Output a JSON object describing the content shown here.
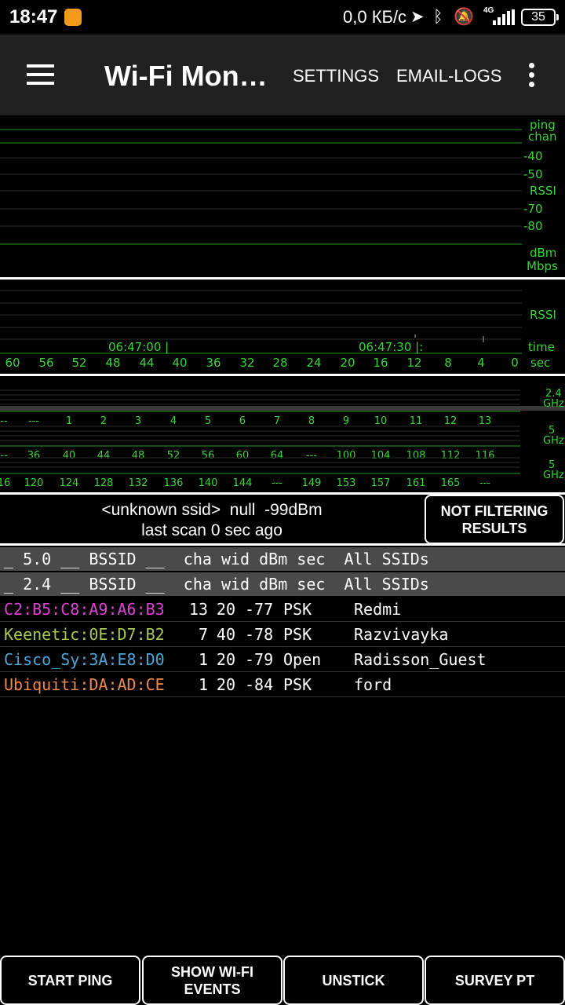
{
  "status_bar": {
    "time": "18:47",
    "network_speed": "0,0 КБ/с",
    "network_type": "4G",
    "battery": "35",
    "icons": [
      "location-arrow-icon",
      "bluetooth-icon",
      "bell-off-icon",
      "signal-icon"
    ]
  },
  "app_bar": {
    "title": "Wi-Fi Monit…",
    "settings": "SETTINGS",
    "email_logs": "EMAIL-LOGS"
  },
  "graph1": {
    "labels": [
      "ping",
      "chan",
      "-40",
      "-50",
      "RSSI",
      "-70",
      "-80",
      "dBm",
      "Mbps"
    ]
  },
  "graph2": {
    "rssi_label": "RSSI",
    "time_label": "time",
    "sec_label": "sec",
    "timestamps": [
      "06:47:00 |",
      "06:47:30 |:"
    ],
    "ticks": [
      "60",
      "56",
      "52",
      "48",
      "44",
      "40",
      "36",
      "32",
      "28",
      "24",
      "20",
      "16",
      "12",
      "8",
      "4",
      "0"
    ]
  },
  "channels": {
    "band_24": {
      "label_top": "2.4",
      "label_bottom": "GHz",
      "ticks": [
        "--",
        "---",
        "1",
        "2",
        "3",
        "4",
        "5",
        "6",
        "7",
        "8",
        "9",
        "10",
        "11",
        "12",
        "13"
      ]
    },
    "band_5a": {
      "label_top": "5",
      "label_bottom": "GHz",
      "ticks": [
        "--",
        "36",
        "40",
        "44",
        "48",
        "52",
        "56",
        "60",
        "64",
        "---",
        "100",
        "104",
        "108",
        "112",
        "116"
      ]
    },
    "band_5b": {
      "label_top": "5",
      "label_bottom": "GHz",
      "ticks": [
        "16",
        "120",
        "124",
        "128",
        "132",
        "136",
        "140",
        "144",
        "---",
        "149",
        "153",
        "157",
        "161",
        "165",
        "---"
      ]
    }
  },
  "status": {
    "line1": "<unknown ssid>  null  -99dBm",
    "line2": "last scan 0 sec ago",
    "filter_button": "NOT FILTERING RESULTS"
  },
  "table": {
    "header_5": "_ 5.0 __ BSSID __  cha wid dBm sec  All SSIDs",
    "header_24": "_ 2.4 __ BSSID __  cha wid dBm sec  All SSIDs",
    "rows": [
      {
        "bssid": "C2:B5:C8:A9:A6:B3",
        "cha": "13",
        "wid": "20",
        "dbm": "-77",
        "sec": "PSK",
        "ssid": "Redmi",
        "color": "#e040d8"
      },
      {
        "bssid": "Keenetic:0E:D7:B2",
        "cha": "7",
        "wid": "40",
        "dbm": "-78",
        "sec": "PSK",
        "ssid": "Razvivayka",
        "color": "#a8c852"
      },
      {
        "bssid": "Cisco_Sy:3A:E8:D0",
        "cha": "1",
        "wid": "20",
        "dbm": "-79",
        "sec": "Open",
        "ssid": "Radisson_Guest",
        "color": "#4aa7d8"
      },
      {
        "bssid": "Ubiquiti:DA:AD:CE",
        "cha": "1",
        "wid": "20",
        "dbm": "-84",
        "sec": "PSK",
        "ssid": "ford",
        "color": "#f08a4a"
      }
    ]
  },
  "buttons": {
    "start_ping": "START PING",
    "show_events": "SHOW WI-FI EVENTS",
    "unstick": "UNSTICK",
    "survey": "SURVEY PT"
  },
  "colors": {
    "graph_green": "#37d537",
    "header_gray": "#4a4a4a",
    "appbar": "#212121"
  }
}
